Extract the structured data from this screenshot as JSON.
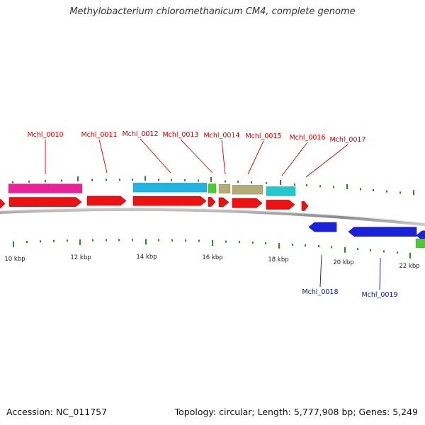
{
  "title": "Methylobacterium chloromethanicum CM4, complete genome",
  "footer": {
    "accession_label": "Accession: NC_011757",
    "summary": "Topology: circular; Length: 5,777,908 bp; Genes: 5,249"
  },
  "colors": {
    "cds_forward": "#ee1111",
    "cds_reverse": "#1a22dd",
    "label_forward": "#cc0000",
    "label_reverse": "#1111aa",
    "tick": "#2a8a2a",
    "axis_text": "#222222",
    "backbone": "#777777"
  },
  "scale_labels": [
    "10 kbp",
    "12 kbp",
    "14 kbp",
    "16 kbp",
    "18 kbp",
    "20 kbp",
    "22 kbp"
  ],
  "genes_forward": [
    "Mchl_0010",
    "Mchl_0011",
    "Mchl_0012",
    "Mchl_0013",
    "Mchl_0014",
    "Mchl_0015",
    "Mchl_0016",
    "Mchl_0017"
  ],
  "genes_reverse": [
    "Mchl_0018",
    "Mchl_0019"
  ],
  "feature_colors": {
    "Mchl_0010": "#e8239a",
    "Mchl_0012": "#22b3e0",
    "Mchl_0013": "#4ccc33",
    "Mchl_0014": "#b5ad78",
    "Mchl_0015": "#b5ad78",
    "Mchl_0016": "#22c8cc",
    "reverse_end": "#4ccc33"
  }
}
